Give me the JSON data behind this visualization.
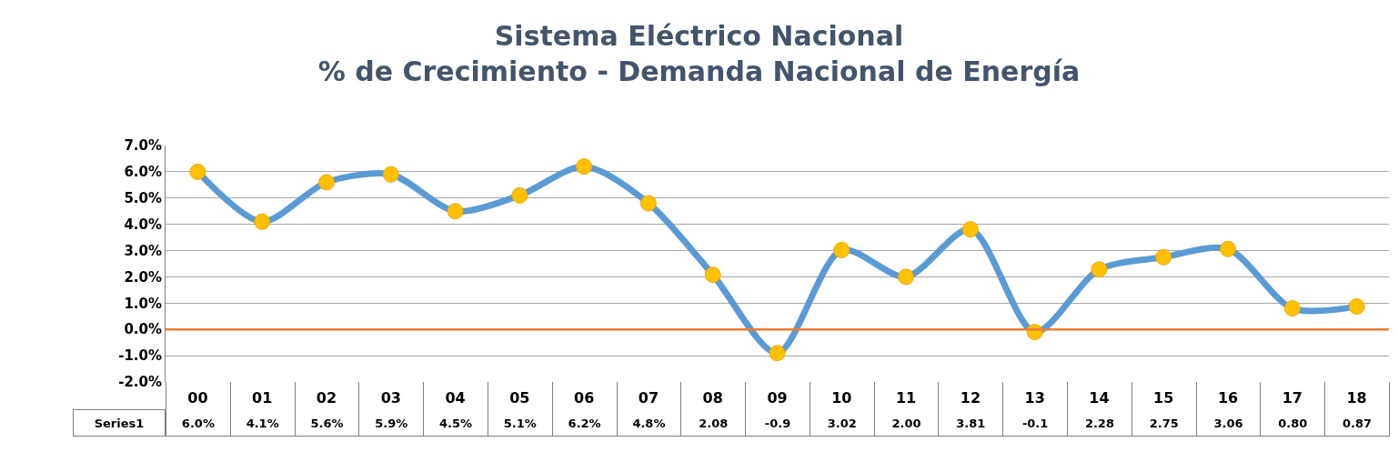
{
  "chart_data": {
    "type": "line",
    "title": "Sistema Eléctrico Nacional\n% de Crecimiento - Demanda Nacional de Energía",
    "categories": [
      "00",
      "01",
      "02",
      "03",
      "04",
      "05",
      "06",
      "07",
      "08",
      "09",
      "10",
      "11",
      "12",
      "13",
      "14",
      "15",
      "16",
      "17",
      "18"
    ],
    "series": [
      {
        "name": "Series1",
        "color": "#5b9bd5",
        "values": [
          6.0,
          4.1,
          5.6,
          5.9,
          4.5,
          5.1,
          6.2,
          4.8,
          2.08,
          -0.9,
          3.02,
          2.0,
          3.81,
          -0.1,
          2.28,
          2.75,
          3.06,
          0.8,
          0.87
        ],
        "value_labels": [
          "6.0%",
          "4.1%",
          "5.6%",
          "5.9%",
          "4.5%",
          "5.1%",
          "6.2%",
          "4.8%",
          "2.08",
          "-0.9",
          "3.02",
          "2.00",
          "3.81",
          "-0.1",
          "2.28",
          "2.75",
          "3.06",
          "0.80",
          "0.87"
        ]
      }
    ],
    "marker": "circle",
    "line_style": "solid",
    "grid": "y",
    "legend": false,
    "ylim": [
      -2,
      7
    ],
    "yticks": [
      {
        "value": -2,
        "label": "-2.0%"
      },
      {
        "value": -1,
        "label": "-1.0%"
      },
      {
        "value": 0,
        "label": "0.0%"
      },
      {
        "value": 1,
        "label": "1.0%"
      },
      {
        "value": 2,
        "label": "2.0%"
      },
      {
        "value": 3,
        "label": "3.0%"
      },
      {
        "value": 4,
        "label": "4.0%"
      },
      {
        "value": 5,
        "label": "5.0%"
      },
      {
        "value": 6,
        "label": "6.0%"
      },
      {
        "value": 7,
        "label": "7.0%"
      }
    ],
    "ref_lines": [
      {
        "axis": "y",
        "value": 0,
        "color": "#ed7d31"
      }
    ]
  }
}
